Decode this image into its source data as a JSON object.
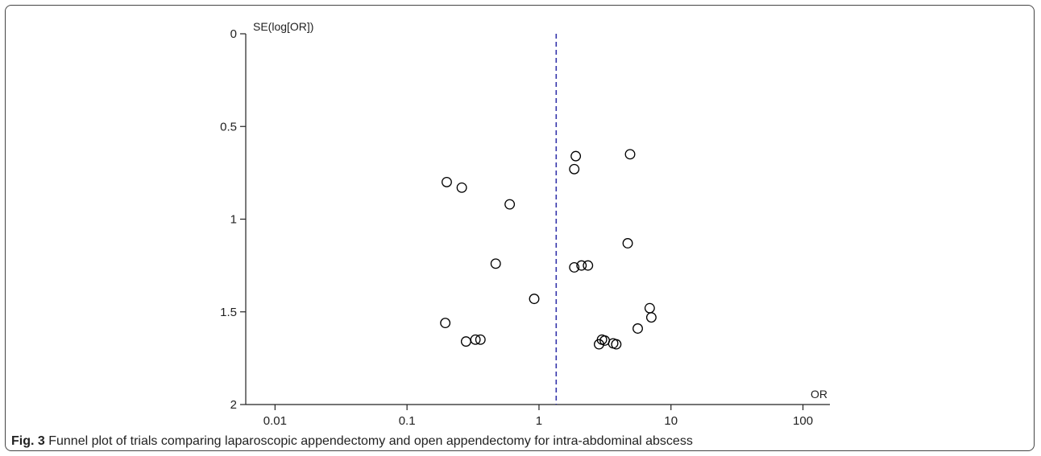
{
  "figure": {
    "caption_label": "Fig. 3",
    "caption_text": "Funnel plot of trials comparing laparoscopic appendectomy and open appendectomy for intra-abdominal abscess"
  },
  "chart_data": {
    "type": "scatter",
    "title": "",
    "xlabel": "OR",
    "ylabel": "SE(log[OR])",
    "x_scale": "log",
    "xlim": [
      0.006,
      160
    ],
    "x_ticks": [
      0.01,
      0.1,
      1,
      10,
      100
    ],
    "x_tick_labels": [
      "0.01",
      "0.1",
      "1",
      "10",
      "100"
    ],
    "ylim": [
      0,
      2
    ],
    "y_inverted": true,
    "y_ticks": [
      0,
      0.5,
      1,
      1.5,
      2
    ],
    "y_tick_labels": [
      "0",
      "0.5",
      "1",
      "1.5",
      "2"
    ],
    "grid": false,
    "reference_line": {
      "x": 1.35,
      "style": "dashed",
      "color": "#3333aa"
    },
    "marker": {
      "shape": "open-circle",
      "color": "#000000"
    },
    "series": [
      {
        "points": [
          {
            "x": 0.2,
            "y": 0.8
          },
          {
            "x": 0.26,
            "y": 0.83
          },
          {
            "x": 0.6,
            "y": 0.92
          },
          {
            "x": 0.47,
            "y": 1.24
          },
          {
            "x": 0.92,
            "y": 1.43
          },
          {
            "x": 0.195,
            "y": 1.56
          },
          {
            "x": 0.28,
            "y": 1.66
          },
          {
            "x": 0.33,
            "y": 1.65
          },
          {
            "x": 0.36,
            "y": 1.65
          },
          {
            "x": 1.9,
            "y": 0.66
          },
          {
            "x": 1.85,
            "y": 0.73
          },
          {
            "x": 4.9,
            "y": 0.65
          },
          {
            "x": 4.7,
            "y": 1.13
          },
          {
            "x": 1.85,
            "y": 1.26
          },
          {
            "x": 2.1,
            "y": 1.25
          },
          {
            "x": 2.35,
            "y": 1.25
          },
          {
            "x": 6.9,
            "y": 1.48
          },
          {
            "x": 7.1,
            "y": 1.53
          },
          {
            "x": 5.6,
            "y": 1.59
          },
          {
            "x": 3.0,
            "y": 1.65
          },
          {
            "x": 3.15,
            "y": 1.655
          },
          {
            "x": 2.85,
            "y": 1.675
          },
          {
            "x": 3.65,
            "y": 1.67
          },
          {
            "x": 3.85,
            "y": 1.675
          }
        ]
      }
    ]
  }
}
